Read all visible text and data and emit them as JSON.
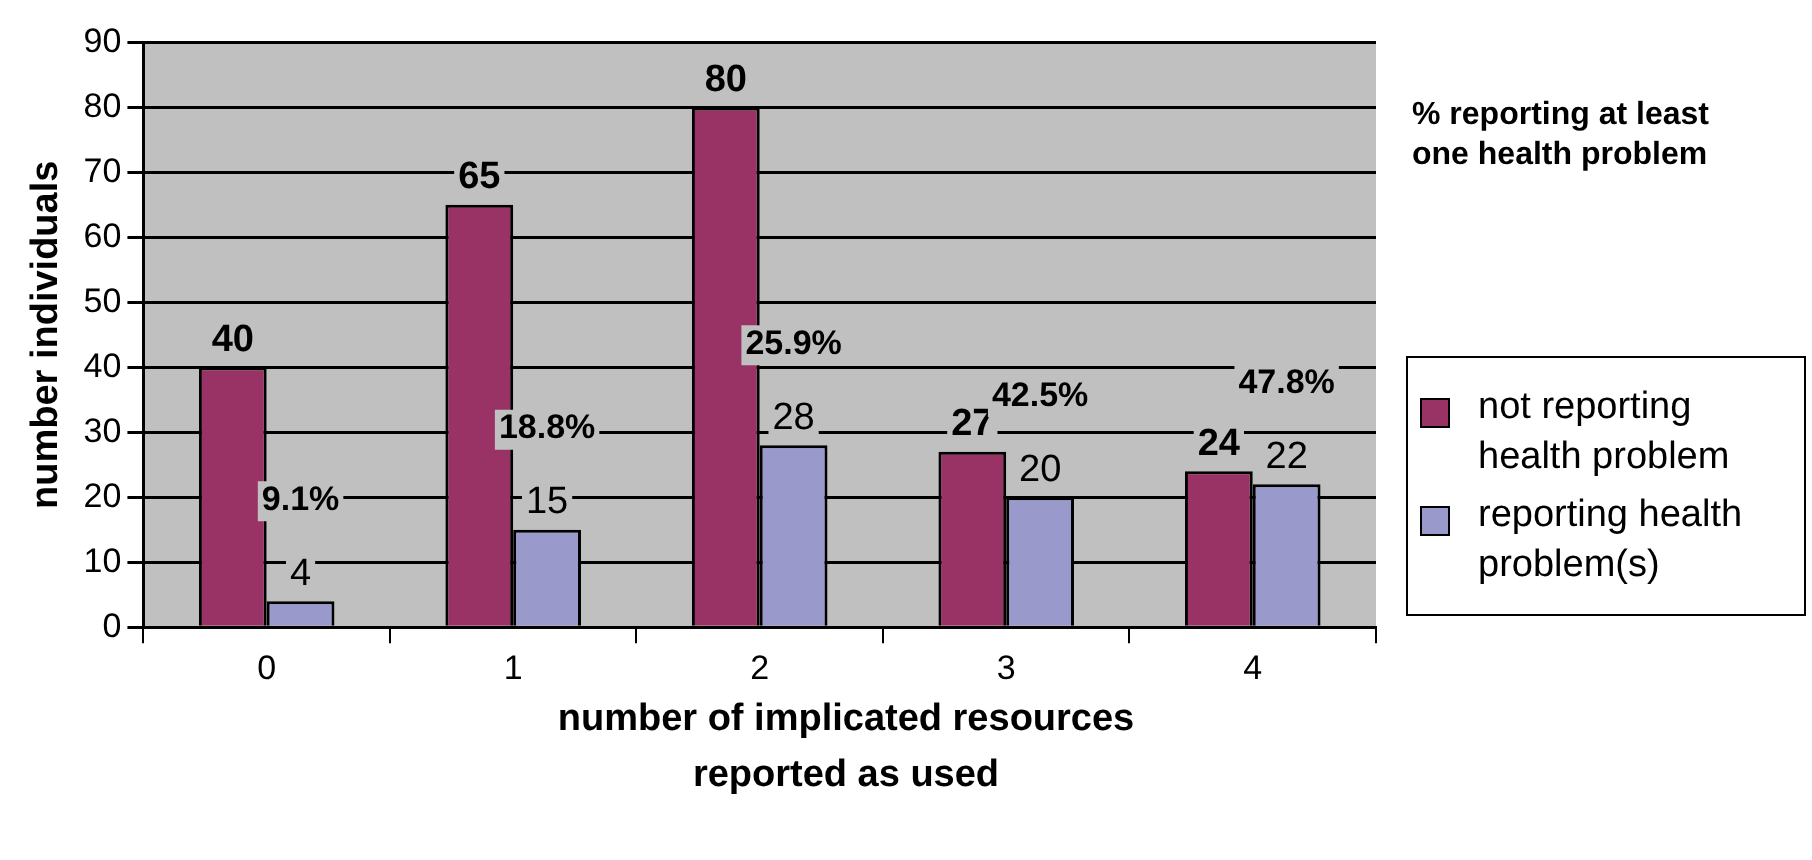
{
  "chart_data": {
    "type": "bar",
    "xlabel": "number of implicated resources reported as used",
    "ylabel": "number individuals",
    "categories": [
      "0",
      "1",
      "2",
      "3",
      "4"
    ],
    "series": [
      {
        "name": "not reporting health problem",
        "color": "#993366",
        "values": [
          40,
          65,
          80,
          27,
          24
        ]
      },
      {
        "name": "reporting health problem(s)",
        "color": "#9999cc",
        "values": [
          4,
          15,
          28,
          20,
          22
        ]
      }
    ],
    "ylim": [
      0,
      90
    ],
    "yticks": [
      0,
      10,
      20,
      30,
      40,
      50,
      60,
      70,
      80,
      90
    ],
    "grid": "y",
    "legend": "right",
    "data_labels": true,
    "annotations": [
      "% reporting at least one health problem",
      "9.1%",
      "18.8%",
      "25.9%",
      "42.5%",
      "47.8%"
    ]
  }
}
